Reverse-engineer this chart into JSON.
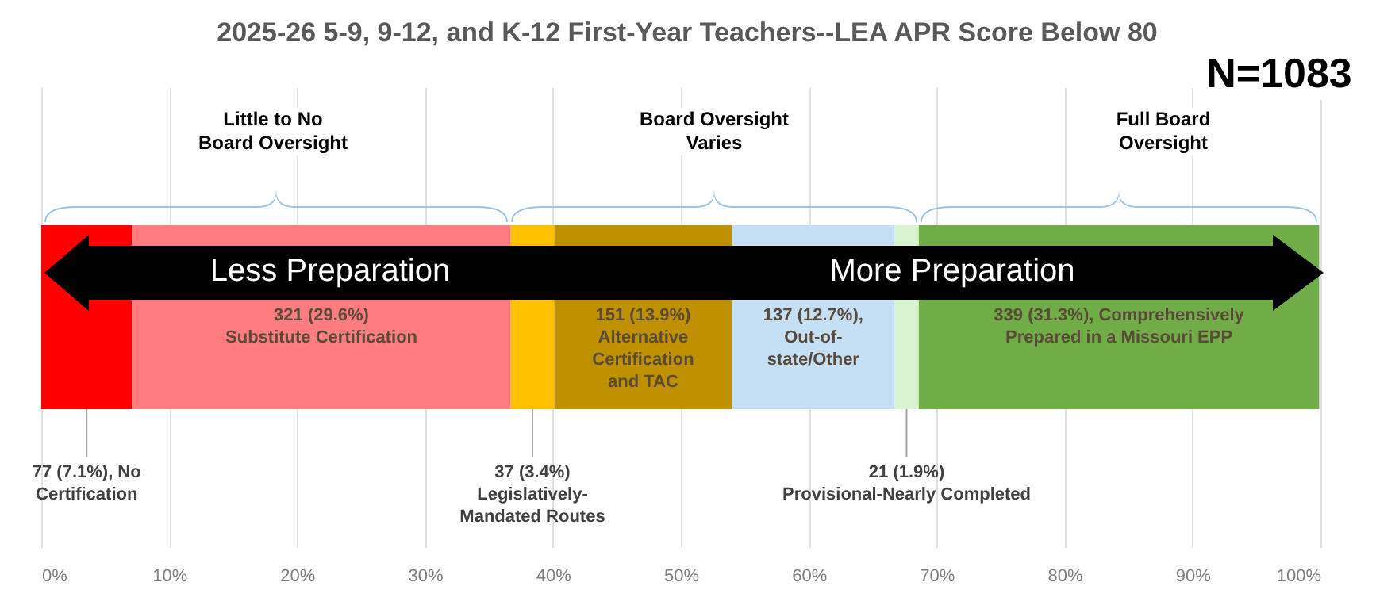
{
  "chart_data": {
    "type": "bar",
    "orientation": "horizontal",
    "stacked": true,
    "title": "2025-26 5-9, 9-12, and K-12 First-Year Teachers--LEA APR Score Below 80",
    "categories": [
      null
    ],
    "series": [
      {
        "color": "#ff0000",
        "values": [
          7.1
        ],
        "value_labels": [
          "77 (7.1%), No\nCertification"
        ]
      },
      {
        "color": "#ff7c80",
        "values": [
          29.6
        ],
        "value_labels": [
          "321 (29.6%)\nSubstitute Certification"
        ]
      },
      {
        "color": "#ffc000",
        "values": [
          3.4
        ],
        "value_labels": [
          "37 (3.4%)\nLegislatively-\nMandated Routes"
        ]
      },
      {
        "color": "#bf9000",
        "values": [
          13.9
        ],
        "value_labels": [
          "151 (13.9%)\nAlternative\nCertification\nand TAC"
        ]
      },
      {
        "color": "#c5e0f5",
        "values": [
          12.7
        ],
        "value_labels": [
          "137 (12.7%),\nOut-of-\nstate/Other"
        ]
      },
      {
        "color": "#d9f2d0",
        "values": [
          1.9
        ],
        "value_labels": [
          "21 (1.9%)\nProvisional-Nearly Completed"
        ]
      },
      {
        "color": "#70ad47",
        "values": [
          31.3
        ],
        "value_labels": [
          "339 (31.3%), Comprehensively\nPrepared in a Missouri EPP"
        ]
      }
    ],
    "xlim": [
      0,
      100
    ],
    "xticks": [
      {
        "value": 0,
        "label": "0%"
      },
      {
        "value": 10,
        "label": "10%"
      },
      {
        "value": 20,
        "label": "20%"
      },
      {
        "value": 30,
        "label": "30%"
      },
      {
        "value": 40,
        "label": "40%"
      },
      {
        "value": 50,
        "label": "50%"
      },
      {
        "value": 60,
        "label": "60%"
      },
      {
        "value": 70,
        "label": "70%"
      },
      {
        "value": 80,
        "label": "80%"
      },
      {
        "value": 90,
        "label": "90%"
      },
      {
        "value": 100,
        "label": "100%"
      }
    ],
    "grid": "x",
    "annotations": [
      "Little to No\nBoard Oversight",
      "Board Oversight\nVaries",
      "Full Board\nOversight",
      "N=1083",
      "Less Preparation",
      "More Preparation"
    ]
  }
}
